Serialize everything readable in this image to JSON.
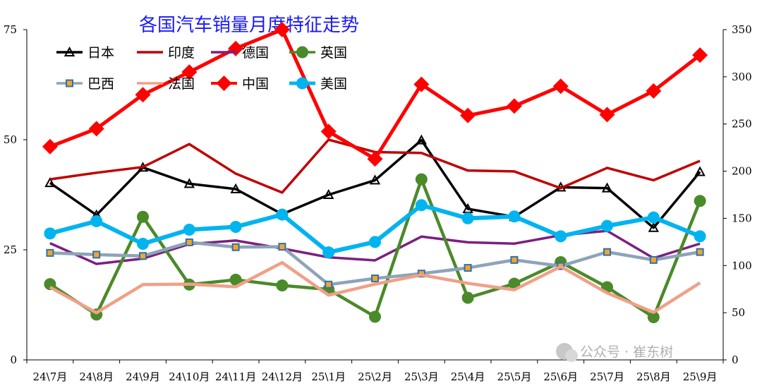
{
  "chart_data": {
    "type": "line",
    "title": "各国汽车销量月度特征走势",
    "categories": [
      "24\\7月",
      "24\\8月",
      "24\\9月",
      "24\\10月",
      "24\\11月",
      "24\\12月",
      "25\\1月",
      "25\\2月",
      "25\\3月",
      "25\\4月",
      "25\\5月",
      "25\\6月",
      "25\\7月",
      "25\\8月",
      "25\\9月"
    ],
    "y_left": {
      "ylim": [
        0,
        75
      ],
      "ticks": [
        0,
        25,
        50,
        75
      ]
    },
    "y_right": {
      "ylim": [
        0,
        350
      ],
      "ticks": [
        0,
        50,
        100,
        150,
        200,
        250,
        300,
        350
      ]
    },
    "grid": false,
    "legend": "top-left",
    "series": [
      {
        "name": "日本",
        "axis": "left",
        "color": "#000000",
        "width": 3.5,
        "marker": "triangle",
        "values": [
          40.2,
          32.9,
          43.7,
          40.0,
          38.8,
          33.1,
          37.5,
          40.8,
          49.9,
          34.3,
          32.5,
          39.2,
          39.0,
          30.0,
          42.7
        ]
      },
      {
        "name": "印度",
        "axis": "left",
        "color": "#c00000",
        "width": 3.5,
        "marker": "none",
        "values": [
          41.0,
          42.5,
          43.8,
          49.0,
          42.3,
          38.0,
          50.0,
          47.2,
          47.0,
          43.0,
          42.8,
          39.0,
          43.6,
          40.8,
          45.2
        ]
      },
      {
        "name": "德国",
        "axis": "left",
        "color": "#7b2080",
        "width": 3.5,
        "marker": "none",
        "values": [
          26.5,
          21.8,
          23.0,
          26.3,
          27.1,
          25.3,
          23.3,
          22.6,
          28.0,
          26.7,
          26.4,
          28.3,
          29.3,
          23.1,
          26.4
        ]
      },
      {
        "name": "英国",
        "axis": "left",
        "color": "#4a8a2a",
        "width": 4.5,
        "marker": "circle",
        "values": [
          17.2,
          10.3,
          32.5,
          17.1,
          18.2,
          16.9,
          16.0,
          9.8,
          41.0,
          14.1,
          17.3,
          22.2,
          16.5,
          9.7,
          36.1
        ]
      },
      {
        "name": "巴西",
        "axis": "left",
        "color": "#8ea3b8",
        "width": 4.5,
        "marker": "square",
        "values": [
          24.3,
          23.9,
          23.6,
          26.7,
          25.6,
          25.7,
          17.1,
          18.5,
          19.6,
          20.9,
          22.7,
          21.3,
          24.5,
          22.7,
          24.5
        ]
      },
      {
        "name": "法国",
        "axis": "left",
        "color": "#f0a088",
        "width": 4.5,
        "marker": "none",
        "values": [
          16.5,
          10.7,
          17.1,
          17.2,
          16.6,
          22.1,
          14.7,
          17.2,
          19.3,
          17.4,
          15.9,
          21.2,
          15.2,
          10.8,
          17.5
        ]
      },
      {
        "name": "中国",
        "axis": "right",
        "color": "#ff0000",
        "width": 5,
        "marker": "diamond",
        "values": [
          226,
          245,
          281,
          305,
          330,
          350,
          242,
          213,
          292,
          259,
          269,
          290,
          260,
          285,
          323
        ]
      },
      {
        "name": "美国",
        "axis": "right",
        "color": "#00b4f0",
        "width": 6,
        "marker": "circle",
        "values": [
          134,
          147,
          123,
          138,
          141,
          154,
          114,
          125,
          164,
          150,
          152,
          131,
          142,
          151,
          131
        ]
      }
    ]
  },
  "watermark": "公众号 · 崔东树"
}
